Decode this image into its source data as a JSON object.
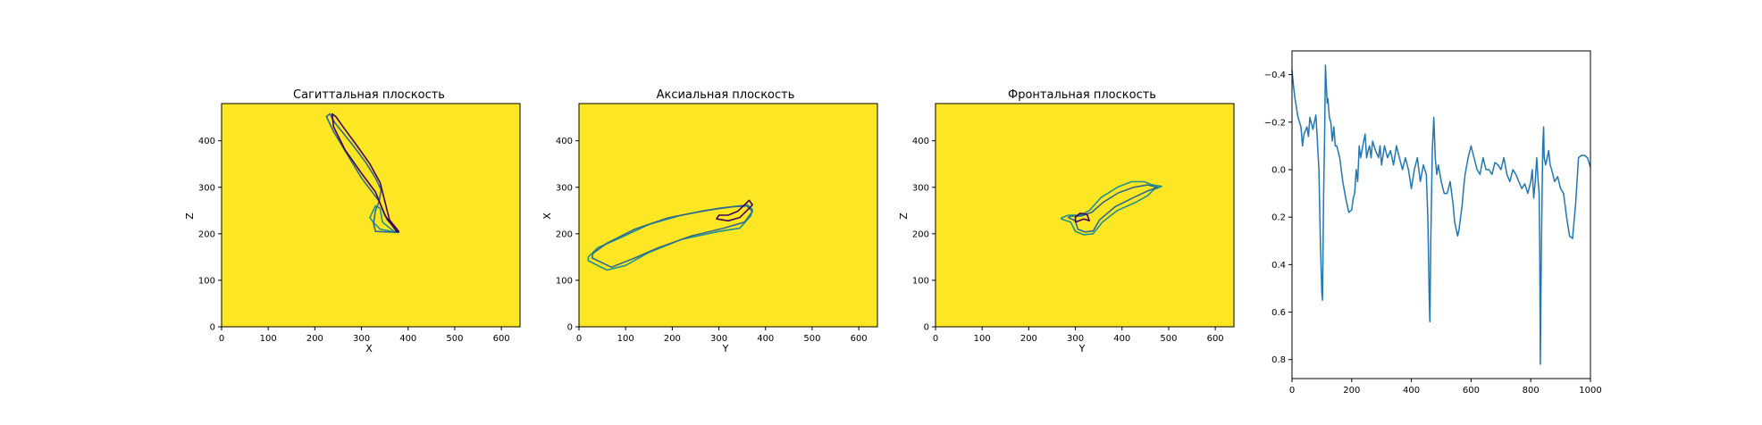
{
  "figure": {
    "background": "#ffffff",
    "image_fill": "#fde725",
    "contour_colors": [
      "#21918c",
      "#31688e",
      "#440154"
    ],
    "line_color": "#1f77b4"
  },
  "panels": [
    {
      "title": "Сагиттальная плоскость",
      "xlabel": "X",
      "ylabel": "Z",
      "xticks": [
        "0",
        "100",
        "200",
        "300",
        "400",
        "500",
        "600"
      ],
      "yticks": [
        "0",
        "100",
        "200",
        "300",
        "400"
      ]
    },
    {
      "title": "Аксиальная плоскость",
      "xlabel": "Y",
      "ylabel": "X",
      "xticks": [
        "0",
        "100",
        "200",
        "300",
        "400",
        "500",
        "600"
      ],
      "yticks": [
        "0",
        "100",
        "200",
        "300",
        "400"
      ]
    },
    {
      "title": "Фронтальная плоскость",
      "xlabel": "Y",
      "ylabel": "Z",
      "xticks": [
        "0",
        "100",
        "200",
        "300",
        "400",
        "500",
        "600"
      ],
      "yticks": [
        "0",
        "100",
        "200",
        "300",
        "400"
      ]
    },
    {
      "title": "",
      "xlabel": "",
      "ylabel": "",
      "xticks": [
        "0",
        "200",
        "400",
        "600",
        "800",
        "1000"
      ],
      "yticks": [
        "−0.4",
        "−0.2",
        "0.0",
        "0.2",
        "0.4",
        "0.6",
        "0.8"
      ]
    }
  ],
  "chart_data": [
    {
      "type": "heatmap",
      "title": "Сагиттальная плоскость",
      "xlabel": "X",
      "ylabel": "Z",
      "xlim": [
        0,
        640
      ],
      "ylim": [
        480,
        0
      ],
      "contours": [
        [
          [
            375,
            203
          ],
          [
            340,
            210
          ],
          [
            325,
            225
          ],
          [
            318,
            235
          ],
          [
            330,
            260
          ],
          [
            340,
            255
          ],
          [
            345,
            225
          ],
          [
            370,
            205
          ]
        ],
        [
          [
            380,
            203
          ],
          [
            355,
            230
          ],
          [
            338,
            270
          ],
          [
            300,
            320
          ],
          [
            270,
            370
          ],
          [
            240,
            420
          ],
          [
            225,
            452
          ],
          [
            232,
            458
          ],
          [
            242,
            440
          ],
          [
            258,
            420
          ],
          [
            282,
            390
          ],
          [
            310,
            352
          ],
          [
            330,
            320
          ],
          [
            342,
            295
          ],
          [
            338,
            270
          ],
          [
            330,
            250
          ],
          [
            326,
            222
          ],
          [
            330,
            205
          ]
        ],
        [
          [
            375,
            205
          ],
          [
            350,
            240
          ],
          [
            330,
            290
          ],
          [
            300,
            330
          ],
          [
            265,
            380
          ],
          [
            240,
            430
          ],
          [
            237,
            458
          ],
          [
            245,
            452
          ],
          [
            262,
            428
          ],
          [
            290,
            390
          ],
          [
            318,
            350
          ],
          [
            340,
            310
          ],
          [
            350,
            270
          ],
          [
            360,
            230
          ],
          [
            380,
            205
          ]
        ]
      ]
    },
    {
      "type": "heatmap",
      "title": "Аксиальная плоскость",
      "xlabel": "Y",
      "ylabel": "X",
      "xlim": [
        0,
        640
      ],
      "ylim": [
        480,
        0
      ],
      "contours": [
        [
          [
            20,
            142
          ],
          [
            60,
            122
          ],
          [
            100,
            132
          ],
          [
            150,
            160
          ],
          [
            220,
            188
          ],
          [
            300,
            205
          ],
          [
            345,
            212
          ],
          [
            368,
            238
          ],
          [
            372,
            252
          ],
          [
            362,
            262
          ],
          [
            300,
            255
          ],
          [
            220,
            240
          ],
          [
            150,
            220
          ],
          [
            90,
            192
          ],
          [
            40,
            170
          ],
          [
            20,
            150
          ]
        ],
        [
          [
            28,
            148
          ],
          [
            70,
            128
          ],
          [
            120,
            148
          ],
          [
            170,
            170
          ],
          [
            240,
            195
          ],
          [
            310,
            212
          ],
          [
            355,
            225
          ],
          [
            372,
            248
          ],
          [
            360,
            260
          ],
          [
            330,
            258
          ],
          [
            270,
            250
          ],
          [
            190,
            234
          ],
          [
            120,
            210
          ],
          [
            60,
            180
          ],
          [
            30,
            158
          ]
        ],
        [
          [
            295,
            232
          ],
          [
            320,
            228
          ],
          [
            345,
            235
          ],
          [
            360,
            250
          ],
          [
            372,
            262
          ],
          [
            365,
            272
          ],
          [
            355,
            262
          ],
          [
            340,
            248
          ],
          [
            320,
            240
          ],
          [
            300,
            240
          ]
        ]
      ]
    },
    {
      "type": "heatmap",
      "title": "Фронтальная плоскость",
      "xlabel": "Y",
      "ylabel": "Z",
      "xlim": [
        0,
        640
      ],
      "ylim": [
        480,
        0
      ],
      "contours": [
        [
          [
            270,
            232
          ],
          [
            290,
            225
          ],
          [
            300,
            205
          ],
          [
            318,
            198
          ],
          [
            338,
            200
          ],
          [
            358,
            225
          ],
          [
            390,
            250
          ],
          [
            430,
            268
          ],
          [
            455,
            282
          ],
          [
            468,
            295
          ],
          [
            485,
            302
          ],
          [
            465,
            305
          ],
          [
            448,
            312
          ],
          [
            420,
            312
          ],
          [
            390,
            300
          ],
          [
            355,
            278
          ],
          [
            330,
            250
          ],
          [
            310,
            240
          ],
          [
            285,
            240
          ],
          [
            270,
            234
          ]
        ],
        [
          [
            285,
            235
          ],
          [
            300,
            228
          ],
          [
            305,
            210
          ],
          [
            320,
            204
          ],
          [
            338,
            206
          ],
          [
            352,
            230
          ],
          [
            385,
            258
          ],
          [
            425,
            278
          ],
          [
            455,
            292
          ],
          [
            476,
            300
          ],
          [
            455,
            305
          ],
          [
            425,
            300
          ],
          [
            392,
            288
          ],
          [
            360,
            268
          ],
          [
            335,
            246
          ],
          [
            312,
            238
          ],
          [
            290,
            238
          ]
        ],
        [
          [
            300,
            225
          ],
          [
            318,
            232
          ],
          [
            330,
            228
          ],
          [
            325,
            242
          ],
          [
            310,
            244
          ],
          [
            300,
            236
          ]
        ]
      ]
    },
    {
      "type": "line",
      "title": "",
      "xlabel": "",
      "ylabel": "",
      "xlim": [
        0,
        1000
      ],
      "ylim": [
        -0.5,
        0.88
      ],
      "series": [
        {
          "color": "#1f77b4",
          "x": [
            0,
            5,
            10,
            20,
            30,
            35,
            40,
            50,
            55,
            60,
            70,
            80,
            85,
            90,
            95,
            100,
            102,
            104,
            106,
            110,
            112,
            115,
            118,
            120,
            125,
            130,
            135,
            140,
            145,
            150,
            160,
            170,
            180,
            190,
            200,
            205,
            210,
            215,
            220,
            225,
            230,
            240,
            245,
            250,
            255,
            260,
            265,
            270,
            280,
            290,
            295,
            300,
            310,
            320,
            330,
            340,
            350,
            360,
            370,
            380,
            390,
            400,
            410,
            420,
            430,
            440,
            450,
            455,
            460,
            462,
            465,
            470,
            475,
            480,
            485,
            490,
            500,
            510,
            520,
            530,
            540,
            545,
            550,
            555,
            560,
            565,
            570,
            575,
            580,
            590,
            600,
            610,
            620,
            630,
            640,
            650,
            660,
            670,
            680,
            690,
            700,
            710,
            720,
            730,
            740,
            750,
            760,
            770,
            780,
            790,
            800,
            805,
            810,
            815,
            820,
            825,
            828,
            830,
            832,
            835,
            838,
            840,
            843,
            845,
            850,
            855,
            860,
            865,
            870,
            880,
            890,
            900,
            910,
            920,
            930,
            940,
            945,
            950,
            955,
            960,
            970,
            980,
            990,
            1000
          ],
          "values": [
            -0.42,
            -0.35,
            -0.3,
            -0.22,
            -0.18,
            -0.1,
            -0.15,
            -0.18,
            -0.14,
            -0.22,
            -0.17,
            -0.23,
            -0.12,
            0.0,
            0.3,
            0.52,
            0.55,
            0.35,
            0.1,
            -0.2,
            -0.44,
            -0.35,
            -0.28,
            -0.3,
            -0.22,
            -0.2,
            -0.12,
            -0.18,
            -0.1,
            -0.1,
            -0.05,
            0.05,
            0.12,
            0.18,
            0.17,
            0.12,
            0.1,
            0.0,
            0.05,
            -0.1,
            -0.05,
            -0.12,
            -0.15,
            -0.05,
            -0.08,
            -0.1,
            -0.05,
            -0.12,
            -0.08,
            -0.05,
            -0.1,
            -0.02,
            -0.1,
            -0.05,
            -0.08,
            -0.02,
            -0.1,
            -0.05,
            0.0,
            -0.05,
            0.0,
            0.08,
            0.0,
            -0.05,
            0.05,
            -0.02,
            0.02,
            0.2,
            0.55,
            0.64,
            0.3,
            -0.08,
            -0.22,
            -0.05,
            0.02,
            -0.02,
            0.05,
            0.1,
            0.1,
            0.05,
            0.15,
            0.22,
            0.25,
            0.28,
            0.25,
            0.2,
            0.15,
            0.08,
            0.02,
            -0.05,
            -0.1,
            -0.05,
            0.0,
            0.02,
            -0.05,
            0.0,
            0.0,
            0.02,
            -0.03,
            -0.02,
            0.0,
            -0.05,
            0.02,
            0.05,
            0.0,
            0.02,
            0.05,
            0.08,
            0.06,
            0.1,
            0.05,
            0.0,
            0.12,
            0.05,
            -0.05,
            0.05,
            0.1,
            0.3,
            0.82,
            0.4,
            0.1,
            -0.1,
            -0.18,
            -0.05,
            -0.02,
            -0.05,
            -0.08,
            -0.02,
            0.0,
            0.05,
            0.03,
            0.08,
            0.1,
            0.2,
            0.28,
            0.29,
            0.22,
            0.15,
            0.05,
            -0.05,
            -0.06,
            -0.06,
            -0.05,
            -0.01
          ]
        }
      ]
    }
  ]
}
